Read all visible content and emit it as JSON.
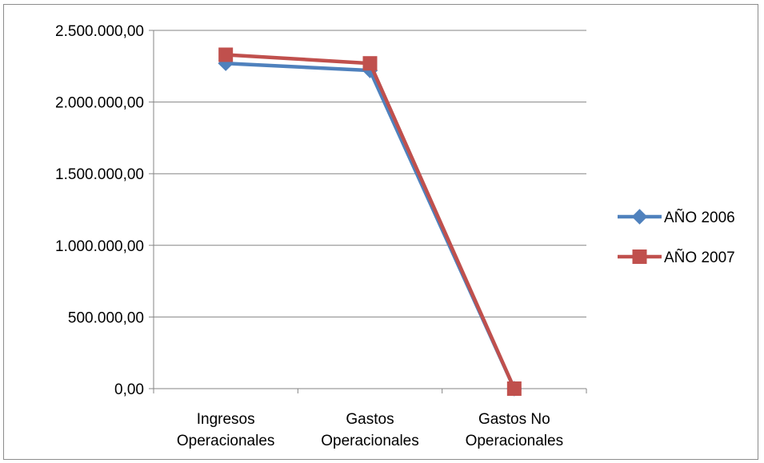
{
  "chart_data": {
    "type": "line",
    "categories": [
      [
        "Ingresos",
        "Operacionales"
      ],
      [
        "Gastos",
        "Operacionales"
      ],
      [
        "Gastos No",
        "Operacionales"
      ]
    ],
    "series": [
      {
        "name": "AÑO 2006",
        "values": [
          2270000,
          2220000,
          0
        ],
        "color": "#4f81bd",
        "marker": "diamond"
      },
      {
        "name": "AÑO 2007",
        "values": [
          2330000,
          2270000,
          0
        ],
        "color": "#c0504d",
        "marker": "square"
      }
    ],
    "ylim": [
      0,
      2500000
    ],
    "yticks": [
      0,
      500000,
      1000000,
      1500000,
      2000000,
      2500000
    ],
    "ytick_labels": [
      "0,00",
      "500.000,00",
      "1.000.000,00",
      "1.500.000,00",
      "2.000.000,00",
      "2.500.000,00"
    ],
    "grid": true,
    "legend_position": "right",
    "title": "",
    "xlabel": "",
    "ylabel": ""
  }
}
